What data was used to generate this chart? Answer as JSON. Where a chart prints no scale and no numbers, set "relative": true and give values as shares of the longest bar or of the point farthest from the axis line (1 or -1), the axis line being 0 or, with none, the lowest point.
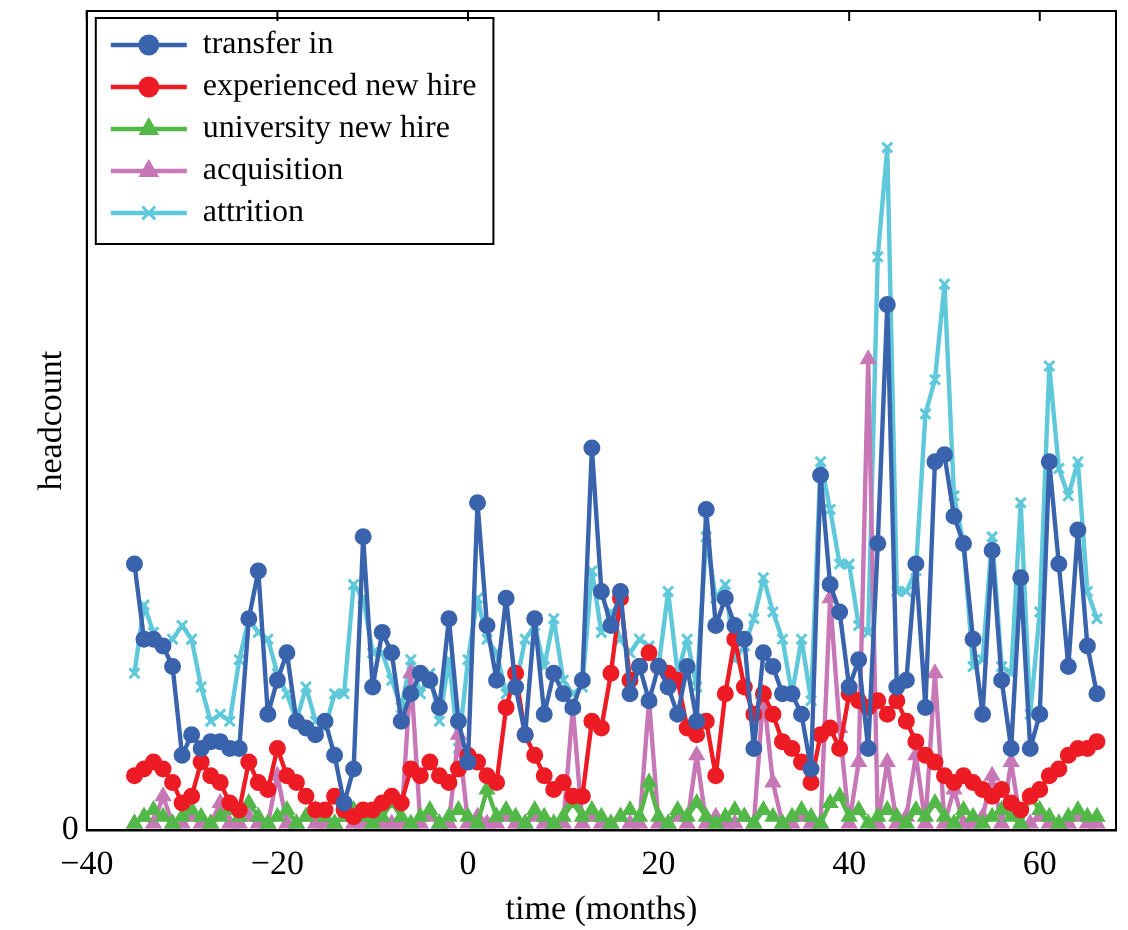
{
  "chart_data": {
    "type": "line",
    "xlabel": "time (months)",
    "ylabel": "headcount",
    "relative": true,
    "annotations": [
      "0"
    ],
    "xlim": [
      -40,
      68
    ],
    "xticks": [
      -40,
      -20,
      0,
      20,
      40,
      60
    ],
    "grid": false,
    "legend": "top left",
    "line_style": "solid",
    "x": [
      -35,
      -34,
      -33,
      -32,
      -31,
      -30,
      -29,
      -28,
      -27,
      -26,
      -25,
      -24,
      -23,
      -22,
      -21,
      -20,
      -19,
      -18,
      -17,
      -16,
      -15,
      -14,
      -13,
      -12,
      -11,
      -10,
      -9,
      -8,
      -7,
      -6,
      -5,
      -4,
      -3,
      -2,
      -1,
      0,
      1,
      2,
      3,
      4,
      5,
      6,
      7,
      8,
      9,
      10,
      11,
      12,
      13,
      14,
      15,
      16,
      17,
      18,
      19,
      20,
      21,
      22,
      23,
      24,
      25,
      26,
      27,
      28,
      29,
      30,
      31,
      32,
      33,
      34,
      35,
      36,
      37,
      38,
      39,
      40,
      41,
      42,
      43,
      44,
      45,
      46,
      47,
      48,
      49,
      50,
      51,
      52,
      53,
      54,
      55,
      56,
      57,
      58,
      59,
      60,
      61,
      62,
      63,
      64,
      65,
      66
    ],
    "series": [
      {
        "name": "transfer in",
        "color": "#3a63ad",
        "marker": "circle",
        "values": [
          0.39,
          0.28,
          0.28,
          0.27,
          0.24,
          0.11,
          0.14,
          0.12,
          0.13,
          0.13,
          0.12,
          0.12,
          0.31,
          0.38,
          0.17,
          0.22,
          0.26,
          0.16,
          0.15,
          0.14,
          0.16,
          0.11,
          0.04,
          0.09,
          0.43,
          0.21,
          0.29,
          0.26,
          0.16,
          0.2,
          0.23,
          0.22,
          0.18,
          0.31,
          0.16,
          0.1,
          0.48,
          0.3,
          0.22,
          0.34,
          0.21,
          0.14,
          0.31,
          0.17,
          0.23,
          0.2,
          0.18,
          0.22,
          0.56,
          0.35,
          0.3,
          0.35,
          0.2,
          0.24,
          0.19,
          0.24,
          0.21,
          0.17,
          0.24,
          0.16,
          0.47,
          0.3,
          0.34,
          0.3,
          0.28,
          0.12,
          0.26,
          0.24,
          0.2,
          0.2,
          0.17,
          0.09,
          0.52,
          0.36,
          0.32,
          0.21,
          0.25,
          0.12,
          0.42,
          0.77,
          0.21,
          0.22,
          0.39,
          0.18,
          0.54,
          0.55,
          0.46,
          0.42,
          0.28,
          0.17,
          0.41,
          0.22,
          0.12,
          0.37,
          0.12,
          0.17,
          0.54,
          0.39,
          0.24,
          0.44,
          0.27,
          0.2
        ]
      },
      {
        "name": "experienced new hire",
        "color": "#ed1c24",
        "marker": "circle",
        "values": [
          0.08,
          0.09,
          0.1,
          0.09,
          0.07,
          0.04,
          0.05,
          0.1,
          0.08,
          0.07,
          0.04,
          0.03,
          0.1,
          0.07,
          0.06,
          0.12,
          0.08,
          0.07,
          0.05,
          0.03,
          0.03,
          0.05,
          0.03,
          0.02,
          0.03,
          0.03,
          0.04,
          0.05,
          0.04,
          0.09,
          0.08,
          0.1,
          0.08,
          0.07,
          0.09,
          0.11,
          0.1,
          0.08,
          0.07,
          0.18,
          0.23,
          0.14,
          0.11,
          0.08,
          0.06,
          0.07,
          0.05,
          0.05,
          0.16,
          0.15,
          0.23,
          0.34,
          0.22,
          0.24,
          0.26,
          0.24,
          0.23,
          0.22,
          0.15,
          0.14,
          0.16,
          0.08,
          0.2,
          0.28,
          0.21,
          0.17,
          0.2,
          0.17,
          0.13,
          0.12,
          0.1,
          0.07,
          0.14,
          0.15,
          0.12,
          0.2,
          0.19,
          0.18,
          0.19,
          0.17,
          0.19,
          0.16,
          0.13,
          0.11,
          0.1,
          0.08,
          0.07,
          0.08,
          0.07,
          0.06,
          0.05,
          0.06,
          0.04,
          0.03,
          0.05,
          0.06,
          0.08,
          0.09,
          0.11,
          0.12,
          0.12,
          0.13
        ]
      },
      {
        "name": "university new hire",
        "color": "#52b848",
        "marker": "triangle",
        "values": [
          0.01,
          0.02,
          0.03,
          0.02,
          0.01,
          0.02,
          0.03,
          0.02,
          0.01,
          0.02,
          0.03,
          0.02,
          0.04,
          0.02,
          0.01,
          0.02,
          0.03,
          0.01,
          0.02,
          0.03,
          0.02,
          0.01,
          0.02,
          0.03,
          0.02,
          0.01,
          0.02,
          0.04,
          0.02,
          0.01,
          0.02,
          0.03,
          0.01,
          0.02,
          0.03,
          0.02,
          0.01,
          0.06,
          0.02,
          0.03,
          0.02,
          0.01,
          0.03,
          0.02,
          0.01,
          0.02,
          0.04,
          0.02,
          0.03,
          0.02,
          0.01,
          0.02,
          0.03,
          0.02,
          0.07,
          0.02,
          0.01,
          0.03,
          0.02,
          0.04,
          0.02,
          0.01,
          0.02,
          0.03,
          0.02,
          0.01,
          0.03,
          0.02,
          0.01,
          0.02,
          0.03,
          0.02,
          0.01,
          0.04,
          0.05,
          0.02,
          0.03,
          0.01,
          0.02,
          0.03,
          0.02,
          0.01,
          0.03,
          0.02,
          0.04,
          0.02,
          0.01,
          0.03,
          0.02,
          0.01,
          0.02,
          0.03,
          0.02,
          0.01,
          0.05,
          0.03,
          0.02,
          0.01,
          0.02,
          0.03,
          0.02,
          0.02
        ]
      },
      {
        "name": "acquisition",
        "color": "#c777b5",
        "marker": "triangle",
        "values": [
          0.01,
          0.02,
          0.01,
          0.05,
          0.01,
          0.01,
          0.02,
          0.01,
          0.01,
          0.04,
          0.01,
          0.01,
          0.02,
          0.01,
          0.01,
          0.08,
          0.01,
          0.01,
          0.02,
          0.01,
          0.01,
          0.01,
          0.02,
          0.01,
          0.01,
          0.02,
          0.01,
          0.01,
          0.01,
          0.23,
          0.01,
          0.02,
          0.01,
          0.01,
          0.14,
          0.01,
          0.02,
          0.01,
          0.01,
          0.02,
          0.01,
          0.01,
          0.02,
          0.01,
          0.01,
          0.01,
          0.18,
          0.01,
          0.02,
          0.01,
          0.01,
          0.02,
          0.01,
          0.01,
          0.19,
          0.01,
          0.01,
          0.02,
          0.01,
          0.11,
          0.01,
          0.02,
          0.01,
          0.01,
          0.02,
          0.01,
          0.2,
          0.07,
          0.01,
          0.01,
          0.02,
          0.01,
          0.01,
          0.34,
          0.15,
          0.01,
          0.1,
          0.69,
          0.01,
          0.1,
          0.01,
          0.02,
          0.11,
          0.01,
          0.23,
          0.01,
          0.06,
          0.01,
          0.01,
          0.02,
          0.08,
          0.01,
          0.1,
          0.01,
          0.01,
          0.02,
          0.01,
          0.01,
          0.01,
          0.02,
          0.01,
          0.01
        ]
      },
      {
        "name": "attrition",
        "color": "#5fc8da",
        "marker": "cross",
        "values": [
          0.23,
          0.33,
          0.29,
          0.27,
          0.28,
          0.3,
          0.28,
          0.21,
          0.16,
          0.17,
          0.16,
          0.25,
          0.31,
          0.29,
          0.28,
          0.23,
          0.2,
          0.16,
          0.21,
          0.16,
          0.15,
          0.2,
          0.2,
          0.36,
          0.34,
          0.26,
          0.26,
          0.22,
          0.18,
          0.25,
          0.2,
          0.23,
          0.16,
          0.25,
          0.12,
          0.25,
          0.34,
          0.28,
          0.26,
          0.2,
          0.21,
          0.28,
          0.3,
          0.24,
          0.31,
          0.22,
          0.2,
          0.21,
          0.38,
          0.29,
          0.32,
          0.28,
          0.26,
          0.28,
          0.27,
          0.24,
          0.35,
          0.23,
          0.28,
          0.21,
          0.43,
          0.34,
          0.36,
          0.25,
          0.27,
          0.31,
          0.37,
          0.32,
          0.28,
          0.2,
          0.28,
          0.19,
          0.54,
          0.47,
          0.39,
          0.39,
          0.3,
          0.29,
          0.84,
          1.0,
          0.35,
          0.35,
          0.38,
          0.61,
          0.66,
          0.8,
          0.49,
          0.42,
          0.24,
          0.25,
          0.43,
          0.24,
          0.23,
          0.48,
          0.17,
          0.32,
          0.68,
          0.53,
          0.49,
          0.54,
          0.35,
          0.31
        ]
      }
    ]
  }
}
